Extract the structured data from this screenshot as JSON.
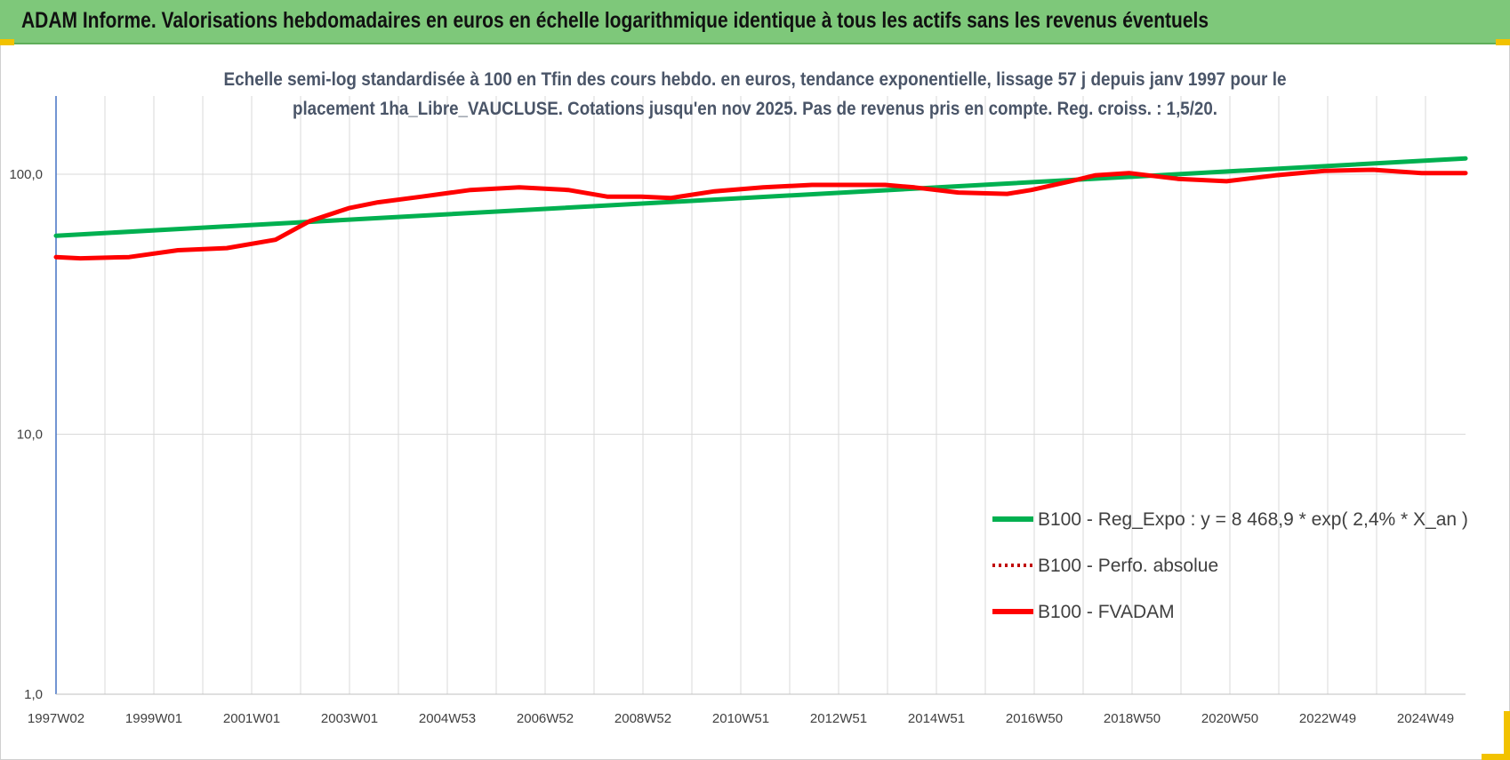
{
  "header": {
    "title": "ADAM Informe. Valorisations hebdomadaires en euros en échelle logarithmique identique à tous les actifs sans les revenus éventuels"
  },
  "colors": {
    "banner": "#7ec87a",
    "regression": "#00b050",
    "fvadam": "#ff0000",
    "perfo": "#c00000",
    "grid": "#d9d9d9",
    "accent": "#f2c200"
  },
  "chart_data": {
    "type": "line",
    "title_lines": [
      "Echelle semi-log standardisée à 100 en Tfin des cours hebdo. en euros, tendance exponentielle, lissage 57 j depuis janv 1997 pour le",
      "placement 1ha_Libre_VAUCLUSE. Cotations jusqu'en nov 2025. Pas de revenus pris en compte. Reg. croiss. : 1,5/20."
    ],
    "y_scale": "log",
    "ylim": [
      1,
      150
    ],
    "y_ticks": [
      "1,0",
      "10,0",
      "100,0"
    ],
    "x_range": [
      1997.0,
      2025.9
    ],
    "x_tick_labels": [
      "1997W02",
      "1999W01",
      "2001W01",
      "2003W01",
      "2004W53",
      "2006W52",
      "2008W52",
      "2010W51",
      "2012W51",
      "2014W51",
      "2016W50",
      "2018W50",
      "2020W50",
      "2022W49",
      "2024W49"
    ],
    "grid": "horizontal and vertical",
    "legend_position": "bottom-right",
    "series": [
      {
        "name": "B100 - Reg_Expo : y = 8 468,9 * exp( 2,4% *  X_an )",
        "style": "solid-green",
        "x": [
          1997.0,
          2025.9
        ],
        "values": [
          58,
          115
        ]
      },
      {
        "name": "B100 - Perfo. absolue",
        "style": "dotted-red",
        "x": [],
        "values": []
      },
      {
        "name": "B100 - FVADAM",
        "style": "solid-red",
        "x": [
          1997.0,
          1997.5,
          1998.5,
          1999.5,
          2000.5,
          2001.5,
          2002.2,
          2003.0,
          2003.6,
          2004.5,
          2005.5,
          2006.5,
          2007.5,
          2008.3,
          2009.0,
          2009.6,
          2010.5,
          2011.5,
          2012.5,
          2013.3,
          2014.0,
          2014.6,
          2015.5,
          2016.5,
          2017.0,
          2017.8,
          2018.3,
          2019.0,
          2020.0,
          2021.0,
          2022.0,
          2023.0,
          2024.0,
          2025.0,
          2025.9
        ],
        "values": [
          48,
          47.5,
          48,
          51,
          52,
          56,
          66,
          74,
          78,
          82,
          87,
          89,
          87,
          82,
          82,
          81,
          86,
          89,
          91,
          91,
          91,
          89,
          85,
          84,
          87,
          94,
          99,
          101,
          96,
          94,
          99,
          103,
          104,
          101,
          101
        ]
      }
    ]
  }
}
